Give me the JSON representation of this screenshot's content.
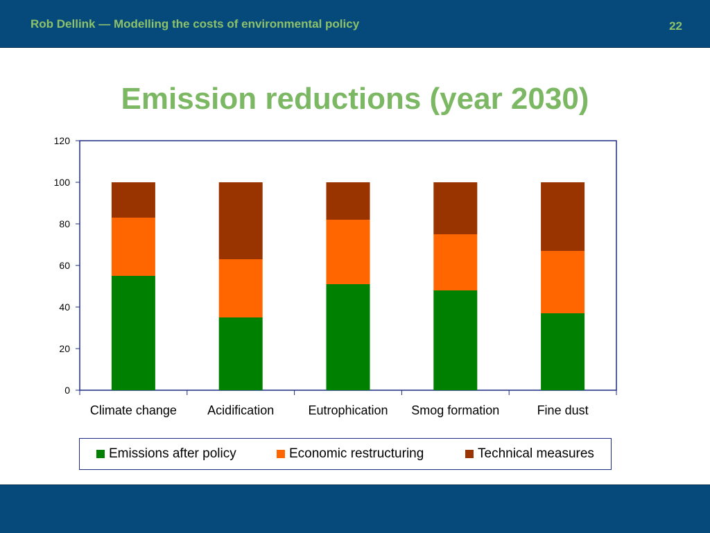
{
  "header": {
    "text": "Rob Dellink — Modelling the costs of environmental policy",
    "page_number": "22"
  },
  "title": "Emission reductions (year 2030)",
  "chart_data": {
    "type": "bar",
    "stacked": true,
    "categories": [
      "Climate change",
      "Acidification",
      "Eutrophication",
      "Smog formation",
      "Fine dust"
    ],
    "series": [
      {
        "name": "Emissions after policy",
        "color": "#008000",
        "values": [
          55,
          35,
          51,
          48,
          37
        ]
      },
      {
        "name": "Economic restructuring",
        "color": "#ff6600",
        "values": [
          28,
          28,
          31,
          27,
          30
        ]
      },
      {
        "name": "Technical measures",
        "color": "#993300",
        "values": [
          17,
          37,
          18,
          25,
          33
        ]
      }
    ],
    "ylim": [
      0,
      120
    ],
    "yticks": [
      0,
      20,
      40,
      60,
      80,
      100,
      120
    ],
    "grid": false,
    "legend_position": "bottom",
    "xlabel": "",
    "ylabel": ""
  },
  "colors": {
    "bar_background": "#064a7c",
    "header_text": "#8dc26a",
    "title": "#7cb763",
    "axis": "#1a2a80"
  }
}
